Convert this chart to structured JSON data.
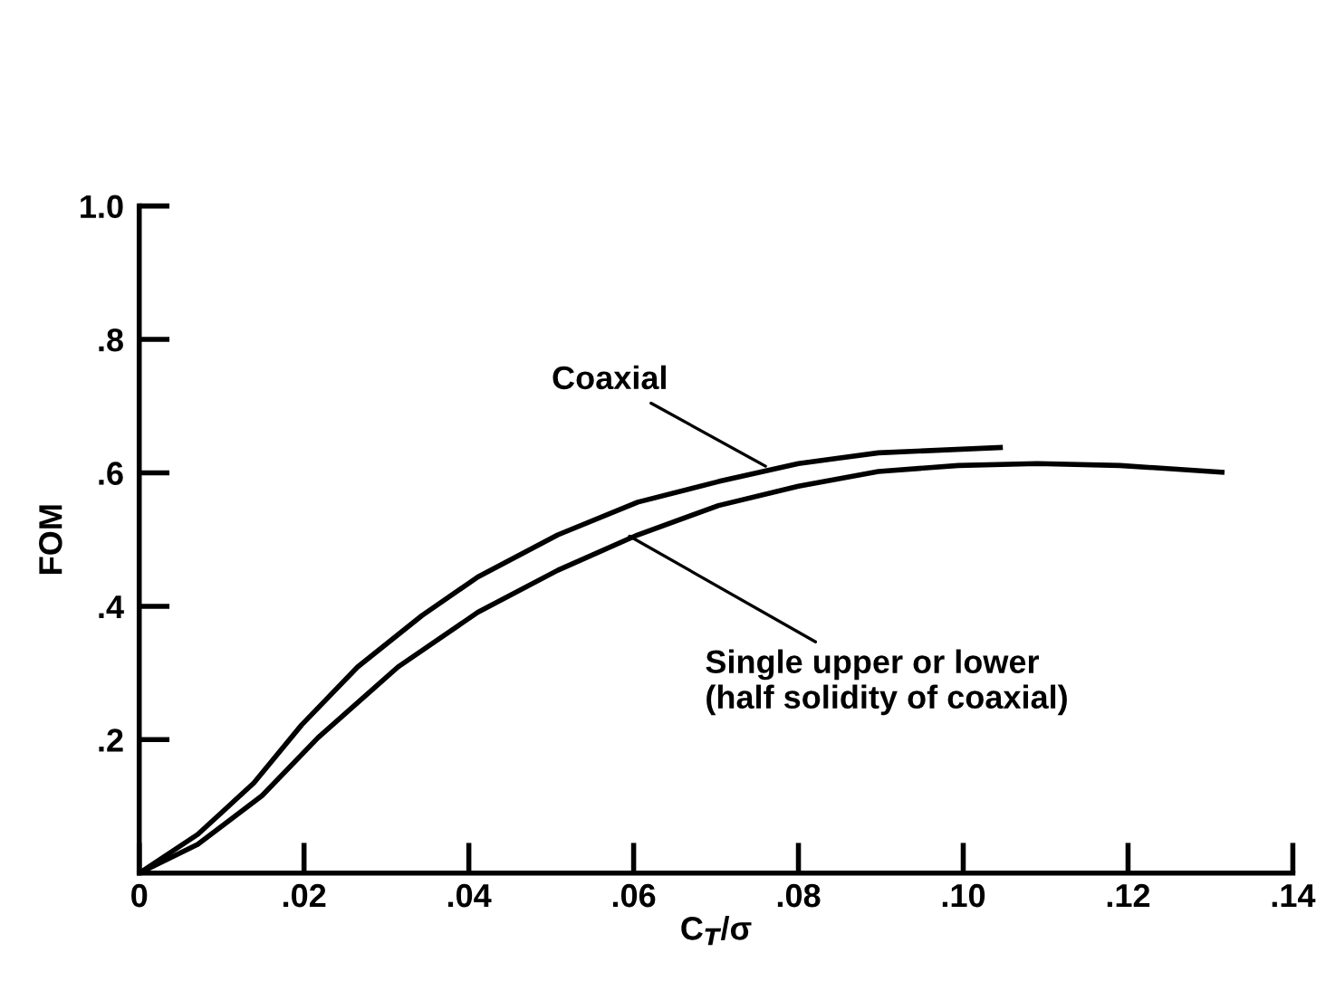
{
  "chart_data": {
    "type": "line",
    "xlabel": "C$_{T}$/σ",
    "ylabel": "FOM",
    "xlim": [
      0,
      0.14
    ],
    "ylim": [
      0,
      1.0
    ],
    "xticks": [
      {
        "value": 0,
        "label": "0"
      },
      {
        "value": 0.02,
        "label": ".02"
      },
      {
        "value": 0.04,
        "label": ".04"
      },
      {
        "value": 0.06,
        "label": ".06"
      },
      {
        "value": 0.08,
        "label": ".08"
      },
      {
        "value": 0.1,
        "label": ".10"
      },
      {
        "value": 0.12,
        "label": ".12"
      },
      {
        "value": 0.14,
        "label": ".14"
      }
    ],
    "yticks": [
      {
        "value": 0.2,
        "label": ".2"
      },
      {
        "value": 0.4,
        "label": ".4"
      },
      {
        "value": 0.6,
        "label": ".6"
      },
      {
        "value": 0.8,
        "label": ".8"
      },
      {
        "value": 1.0,
        "label": "1.0"
      }
    ],
    "grid": false,
    "legend": false,
    "marker": "none",
    "line_style": "solid",
    "series": [
      {
        "color": "#000000",
        "x": [
          0,
          0.0071,
          0.0139,
          0.0197,
          0.0265,
          0.0343,
          0.0411,
          0.0508,
          0.0605,
          0.0703,
          0.08,
          0.0897,
          0.1045
        ],
        "values": [
          0,
          0.058,
          0.135,
          0.222,
          0.309,
          0.386,
          0.444,
          0.507,
          0.556,
          0.587,
          0.614,
          0.63,
          0.638
        ]
      },
      {
        "color": "#000000",
        "x": [
          0,
          0.0071,
          0.0149,
          0.0217,
          0.0314,
          0.0411,
          0.0508,
          0.0605,
          0.0703,
          0.08,
          0.0897,
          0.0994,
          0.109,
          0.119,
          0.1314
        ],
        "values": [
          0,
          0.043,
          0.116,
          0.203,
          0.309,
          0.391,
          0.454,
          0.507,
          0.551,
          0.58,
          0.602,
          0.611,
          0.614,
          0.611,
          0.601
        ]
      }
    ],
    "annotations": [
      {
        "text": "Coaxial",
        "x": 0.076,
        "y": 0.61
      },
      {
        "text": "Single upper or lower\n(half solidity of coaxial)",
        "x": 0.0595,
        "y": 0.505
      }
    ]
  }
}
